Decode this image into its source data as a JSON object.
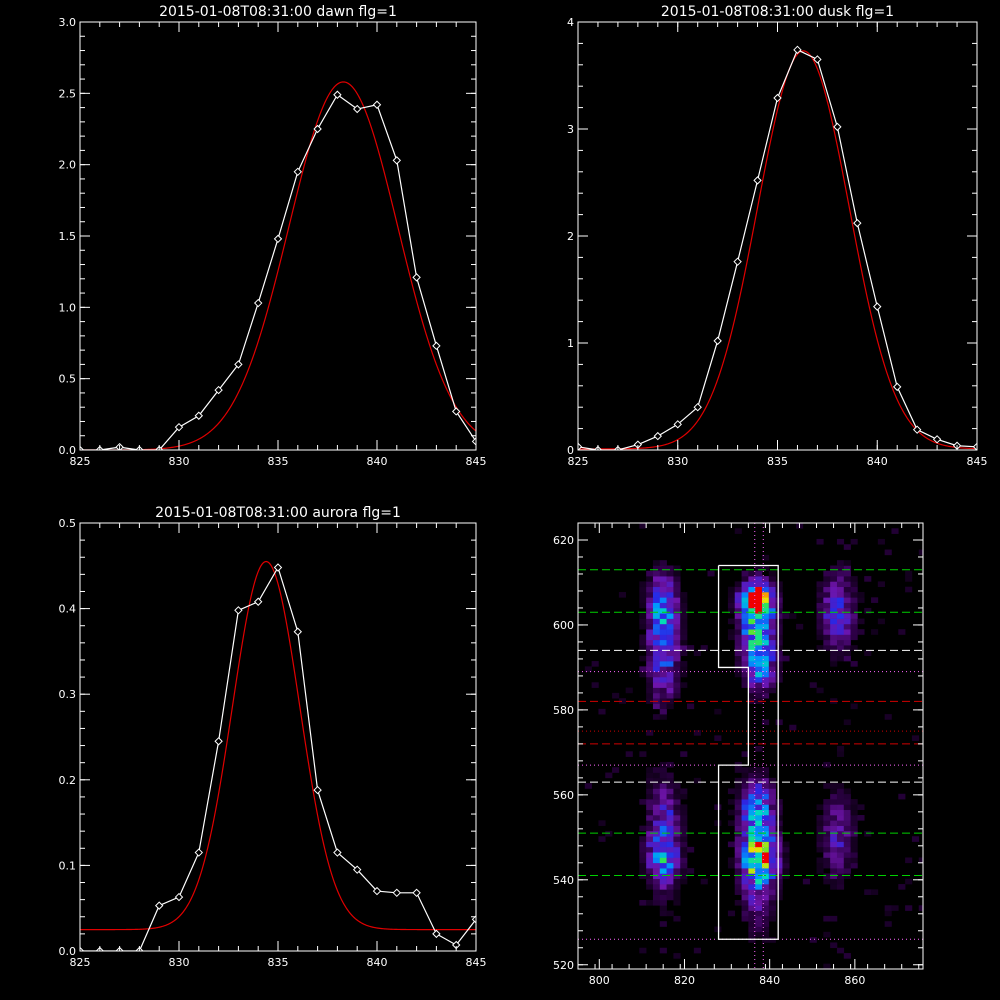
{
  "colors": {
    "background": "#000000",
    "axes": "#ffffff",
    "measured": "#ffffff",
    "fit": "#e00000",
    "guide_green": "#00d000",
    "guide_white": "#ffffff",
    "guide_red": "#d00000",
    "guide_magenta": "#ff66ff"
  },
  "chart_data": [
    {
      "type": "line",
      "title": "2015-01-08T08:31:00 dawn flg=1",
      "xlim": [
        825,
        845
      ],
      "ylim": [
        0,
        3.0
      ],
      "xticks": [
        "825",
        "830",
        "835",
        "840",
        "845"
      ],
      "yticks": [
        "0.0",
        "0.5",
        "1.0",
        "1.5",
        "2.0",
        "2.5",
        "3.0"
      ],
      "series": [
        {
          "role": "measured",
          "x": [
            825,
            826,
            827,
            828,
            829,
            830,
            831,
            832,
            833,
            834,
            835,
            836,
            837,
            838,
            839,
            840,
            841,
            842,
            843,
            844,
            845
          ],
          "y": [
            0.0,
            0.0,
            0.02,
            0.0,
            0.0,
            0.16,
            0.24,
            0.42,
            0.6,
            1.03,
            1.48,
            1.95,
            2.25,
            2.49,
            2.39,
            2.42,
            2.03,
            1.21,
            0.73,
            0.27,
            0.06
          ],
          "markers": true
        },
        {
          "role": "fit",
          "gaussian": {
            "amp": 2.58,
            "center": 838.3,
            "sigma": 2.75,
            "offset": 0.0
          }
        }
      ]
    },
    {
      "type": "line",
      "title": "2015-01-08T08:31:00 dusk flg=1",
      "xlim": [
        825,
        845
      ],
      "ylim": [
        0,
        4
      ],
      "xticks": [
        "825",
        "830",
        "835",
        "840",
        "845"
      ],
      "yticks": [
        "0",
        "1",
        "2",
        "3",
        "4"
      ],
      "series": [
        {
          "role": "measured",
          "x": [
            825,
            826,
            827,
            828,
            829,
            830,
            831,
            832,
            833,
            834,
            835,
            836,
            837,
            838,
            839,
            840,
            841,
            842,
            843,
            844,
            845
          ],
          "y": [
            0.03,
            0.0,
            0.0,
            0.05,
            0.13,
            0.24,
            0.4,
            1.02,
            1.76,
            2.52,
            3.29,
            3.74,
            3.65,
            3.02,
            2.12,
            1.34,
            0.59,
            0.19,
            0.1,
            0.04,
            0.03
          ],
          "markers": true
        },
        {
          "role": "fit",
          "gaussian": {
            "amp": 3.72,
            "center": 836.3,
            "sigma": 2.3,
            "offset": 0.01
          }
        }
      ]
    },
    {
      "type": "line",
      "title": "2015-01-08T08:31:00 aurora flg=1",
      "xlim": [
        825,
        845
      ],
      "ylim": [
        0,
        0.5
      ],
      "xticks": [
        "825",
        "830",
        "835",
        "840",
        "845"
      ],
      "yticks": [
        "0.0",
        "0.1",
        "0.2",
        "0.3",
        "0.4",
        "0.5"
      ],
      "series": [
        {
          "role": "measured",
          "x": [
            825,
            826,
            827,
            828,
            829,
            830,
            831,
            832,
            833,
            834,
            835,
            836,
            837,
            838,
            839,
            840,
            841,
            842,
            843,
            844,
            845
          ],
          "y": [
            0.0,
            0.0,
            0.0,
            0.0,
            0.053,
            0.063,
            0.115,
            0.245,
            0.398,
            0.408,
            0.448,
            0.373,
            0.188,
            0.115,
            0.095,
            0.07,
            0.068,
            0.068,
            0.02,
            0.007,
            0.037
          ],
          "markers": true
        },
        {
          "role": "fit",
          "gaussian": {
            "amp": 0.43,
            "center": 834.4,
            "sigma": 1.7,
            "offset": 0.025
          }
        }
      ]
    },
    {
      "type": "heatmap",
      "xlim": [
        795,
        876
      ],
      "ylim": [
        519,
        624
      ],
      "xticks": [
        "800",
        "820",
        "840",
        "860"
      ],
      "yticks": [
        "520",
        "540",
        "560",
        "580",
        "600",
        "620"
      ],
      "blobs": [
        {
          "x": 837,
          "y": 606,
          "sx": 2.2,
          "sy": 2.2,
          "amp": 1.0
        },
        {
          "x": 837,
          "y": 600,
          "sx": 2.6,
          "sy": 6.0,
          "amp": 0.6
        },
        {
          "x": 838,
          "y": 590,
          "sx": 2.2,
          "sy": 4.0,
          "amp": 0.35
        },
        {
          "x": 837,
          "y": 556,
          "sx": 2.6,
          "sy": 5.0,
          "amp": 0.5
        },
        {
          "x": 838,
          "y": 545,
          "sx": 2.6,
          "sy": 3.5,
          "amp": 0.7
        },
        {
          "x": 837,
          "y": 540,
          "sx": 2.6,
          "sy": 8.0,
          "amp": 0.25
        },
        {
          "x": 815,
          "y": 603,
          "sx": 2.4,
          "sy": 6.0,
          "amp": 0.45
        },
        {
          "x": 815,
          "y": 590,
          "sx": 2.6,
          "sy": 6.0,
          "amp": 0.25
        },
        {
          "x": 815,
          "y": 550,
          "sx": 2.6,
          "sy": 9.0,
          "amp": 0.3
        },
        {
          "x": 815,
          "y": 545,
          "sx": 2.4,
          "sy": 3.0,
          "amp": 0.25
        },
        {
          "x": 856,
          "y": 603,
          "sx": 2.8,
          "sy": 6.0,
          "amp": 0.3
        },
        {
          "x": 856,
          "y": 550,
          "sx": 2.6,
          "sy": 7.0,
          "amp": 0.22
        }
      ],
      "hlines": [
        {
          "y": 613,
          "color": "guide_green",
          "style": "dashed"
        },
        {
          "y": 603,
          "color": "guide_green",
          "style": "dashed"
        },
        {
          "y": 594,
          "color": "guide_white",
          "style": "dashed"
        },
        {
          "y": 589,
          "color": "guide_magenta",
          "style": "dotted"
        },
        {
          "y": 582,
          "color": "guide_red",
          "style": "dashed"
        },
        {
          "y": 575,
          "color": "guide_red",
          "style": "dotted"
        },
        {
          "y": 572,
          "color": "guide_red",
          "style": "dashed"
        },
        {
          "y": 567,
          "color": "guide_magenta",
          "style": "dotted"
        },
        {
          "y": 563,
          "color": "guide_white",
          "style": "dashed"
        },
        {
          "y": 551,
          "color": "guide_green",
          "style": "dashed"
        },
        {
          "y": 541,
          "color": "guide_green",
          "style": "dashed"
        },
        {
          "y": 526,
          "color": "guide_magenta",
          "style": "dotted"
        }
      ],
      "vlines": [
        {
          "x": 836.5,
          "color": "guide_magenta",
          "style": "dotted"
        },
        {
          "x": 838.5,
          "color": "guide_magenta",
          "style": "dotted"
        }
      ],
      "region_outline": [
        [
          828,
          614
        ],
        [
          842,
          614
        ],
        [
          842,
          526
        ],
        [
          828,
          526
        ],
        [
          828,
          567
        ],
        [
          835,
          567
        ],
        [
          835,
          590
        ],
        [
          828,
          590
        ],
        [
          828,
          614
        ]
      ]
    }
  ]
}
